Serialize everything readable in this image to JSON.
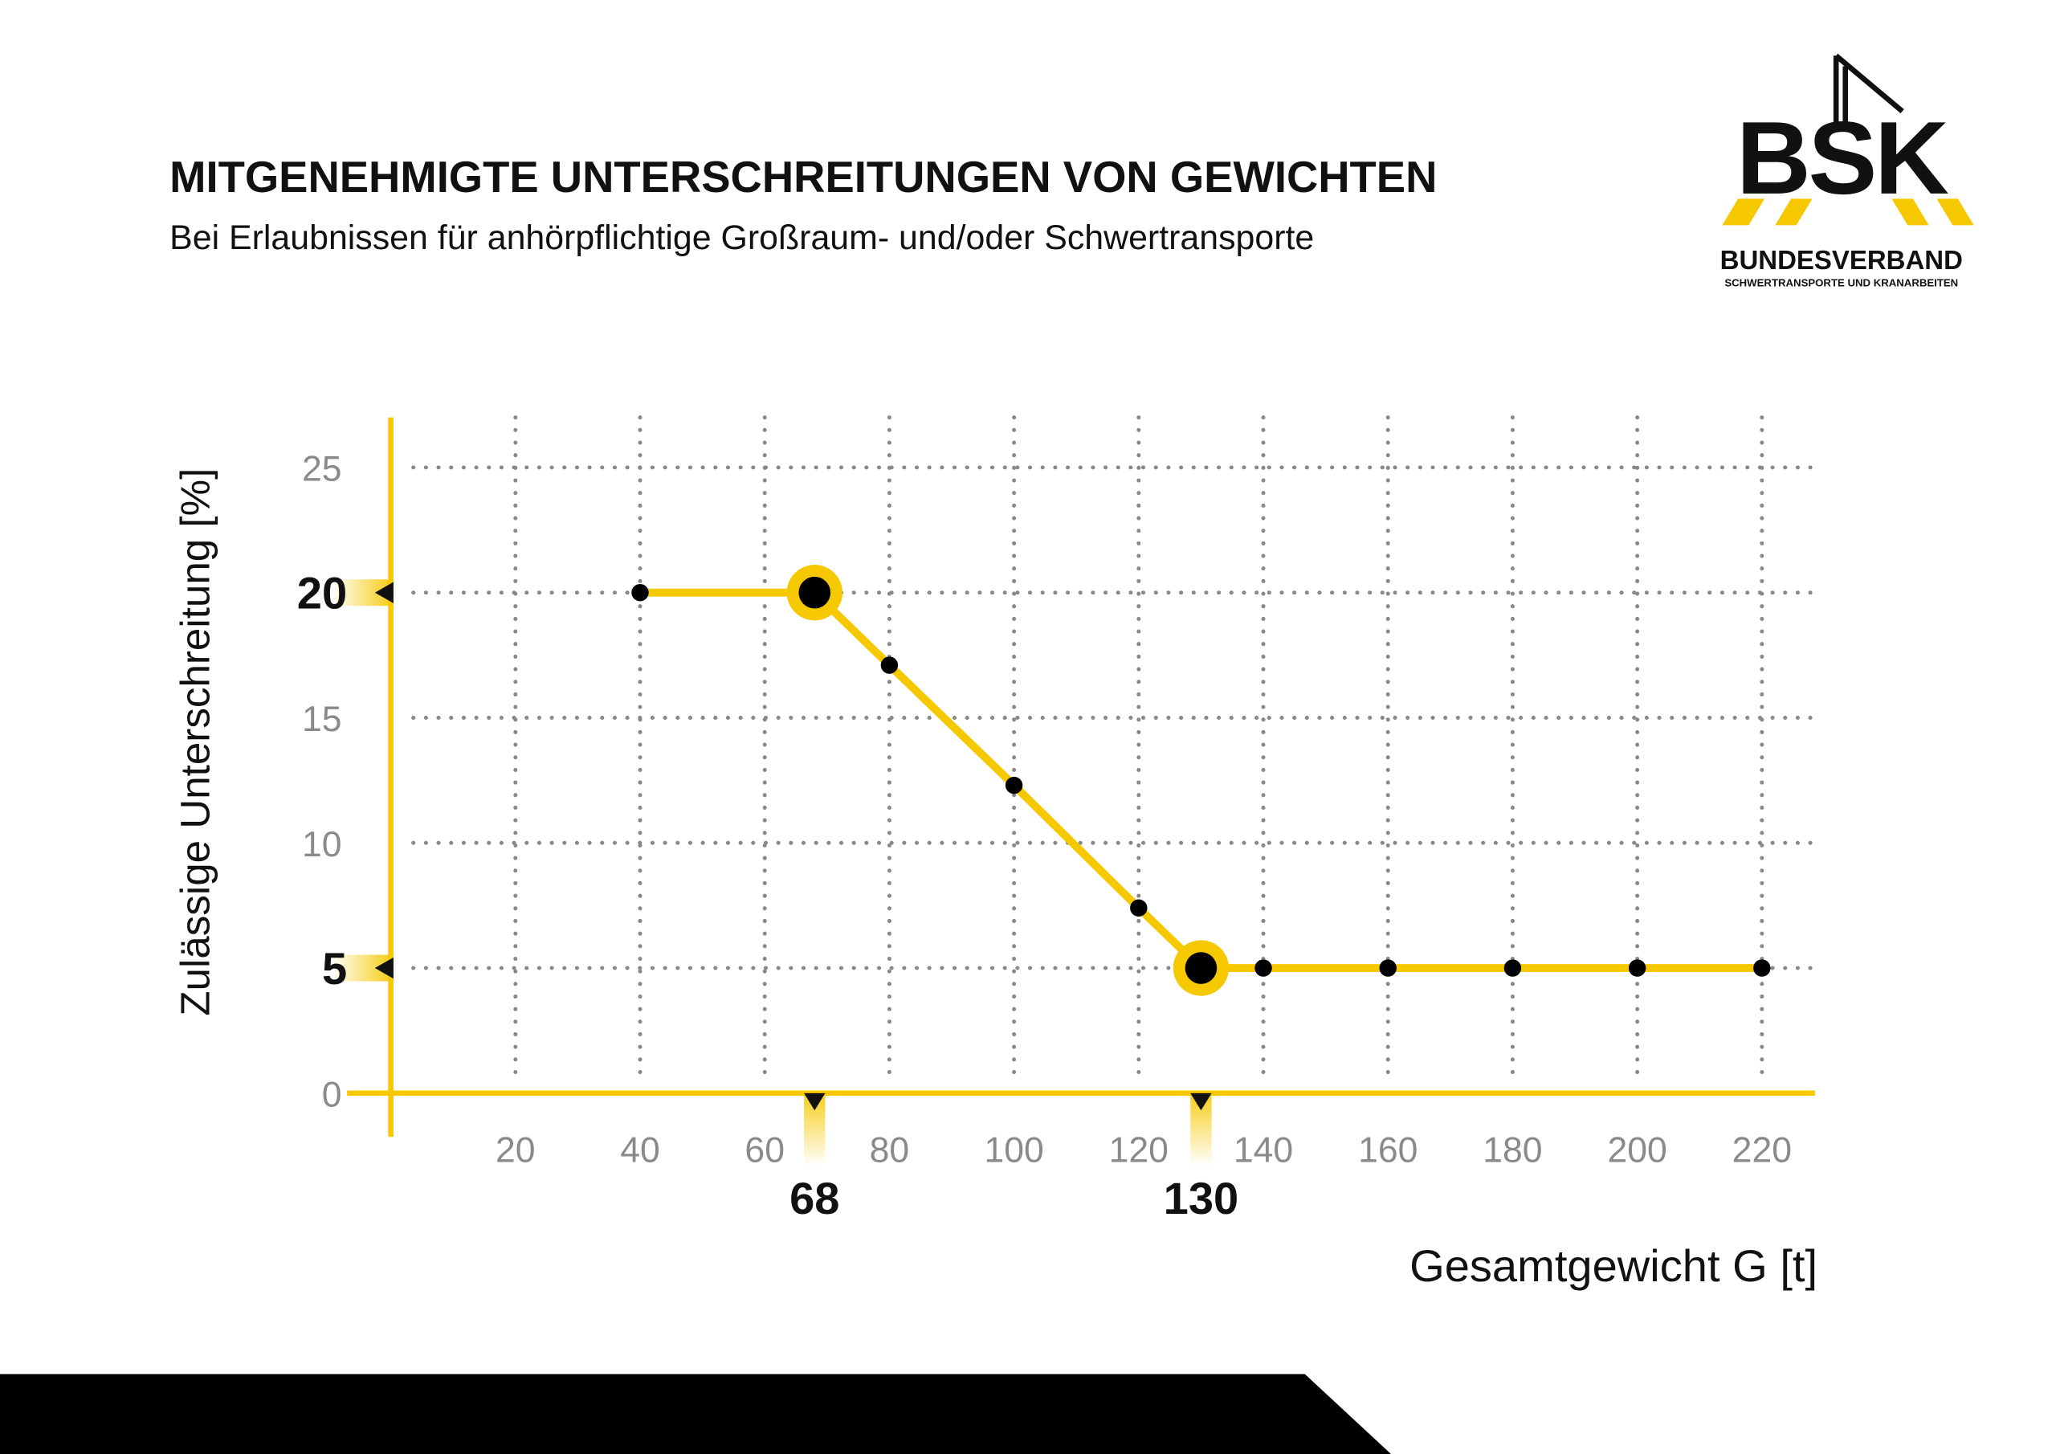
{
  "chart_data": {
    "type": "line",
    "title": "MITGENEHMIGTE UNTERSCHREITUNGEN VON GEWICHTEN",
    "subtitle": "Bei Erlaubnissen für anhörpflichtige Großraum- und/oder Schwertransporte",
    "x_label": "Gesamtgewicht G [t]",
    "y_label": "Zulässige Unterschreitung [%]",
    "x": [
      40,
      68,
      80,
      100,
      120,
      130,
      140,
      160,
      180,
      200,
      220
    ],
    "series": [
      {
        "color": "#f5c800",
        "values": [
          20,
          20,
          17.1,
          12.3,
          7.4,
          5,
          5,
          5,
          5,
          5,
          5
        ]
      }
    ],
    "highlights": [
      {
        "x": 68,
        "y": 20
      },
      {
        "x": 130,
        "y": 5
      }
    ],
    "xlim": [
      0,
      228.5
    ],
    "ylim": [
      0,
      27
    ],
    "xticks": [
      20,
      40,
      60,
      80,
      100,
      120,
      140,
      160,
      180,
      200,
      220
    ],
    "yticks": [
      0,
      10,
      15,
      25
    ],
    "grid": true
  },
  "logo": {
    "mark": "BSK",
    "name": "BUNDESVERBAND",
    "tagline": "SCHWERTRANSPORTE UND KRANARBEITEN"
  }
}
